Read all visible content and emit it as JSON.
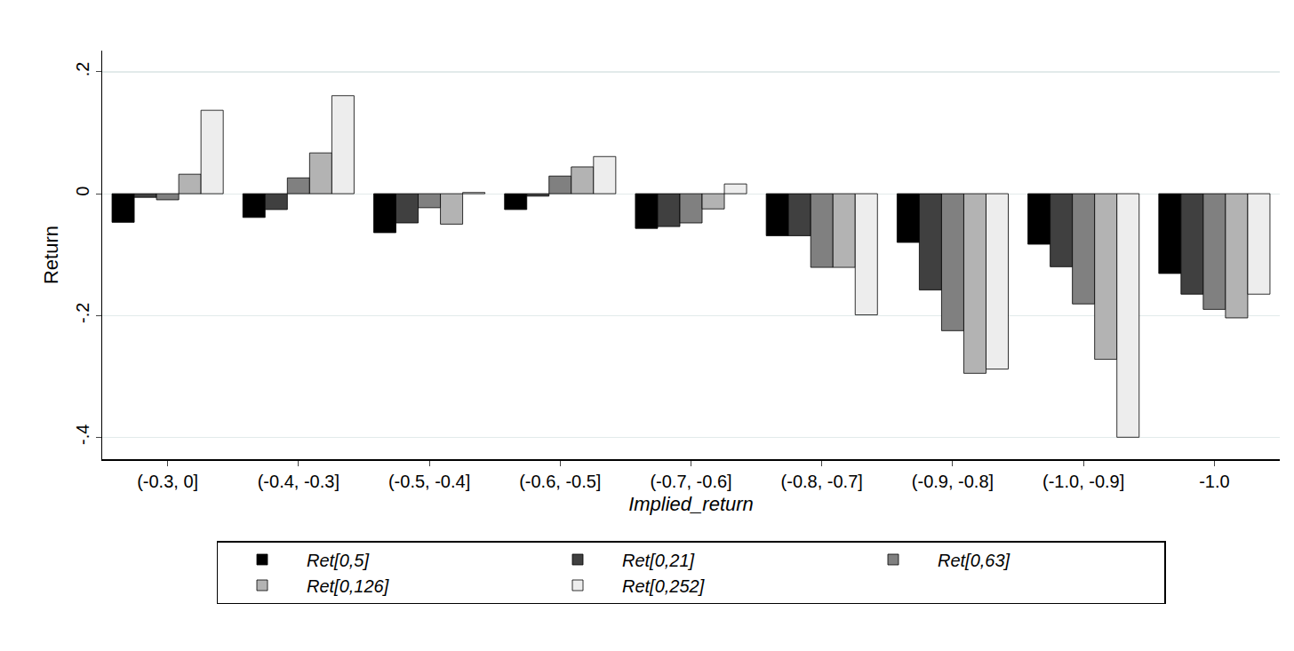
{
  "chart_data": {
    "type": "bar",
    "x_label": "Implied_return",
    "y_label": "Return",
    "categories": [
      "(-0.3, 0]",
      "(-0.4, -0.3]",
      "(-0.5, -0.4]",
      "(-0.6, -0.5]",
      "(-0.7, -0.6]",
      "(-0.8, -0.7]",
      "(-0.9, -0.8]",
      "(-1.0, -0.9]",
      "-1.0"
    ],
    "series": [
      {
        "name": "Ret[0,5]",
        "color": "#000000",
        "values": [
          -0.047,
          -0.039,
          -0.064,
          -0.026,
          -0.057,
          -0.069,
          -0.08,
          -0.083,
          -0.131
        ]
      },
      {
        "name": "Ret[0,21]",
        "color": "#404040",
        "values": [
          -0.006,
          -0.026,
          -0.048,
          -0.004,
          -0.054,
          -0.069,
          -0.158,
          -0.12,
          -0.165
        ]
      },
      {
        "name": "Ret[0,63]",
        "color": "#808080",
        "values": [
          -0.01,
          0.026,
          -0.023,
          0.029,
          -0.048,
          -0.121,
          -0.225,
          -0.181,
          -0.19
        ]
      },
      {
        "name": "Ret[0,126]",
        "color": "#b3b3b3",
        "values": [
          0.032,
          0.067,
          -0.05,
          0.044,
          -0.025,
          -0.121,
          -0.295,
          -0.272,
          -0.204
        ]
      },
      {
        "name": "Ret[0,252]",
        "color": "#ededed",
        "values": [
          0.137,
          0.161,
          0.002,
          0.061,
          0.016,
          -0.199,
          -0.288,
          -0.4,
          -0.165
        ]
      }
    ],
    "ylim": [
      -0.436,
      0.235
    ],
    "yticks": [
      {
        "value": -0.4,
        "label": "-.4"
      },
      {
        "value": -0.2,
        "label": "-.2"
      },
      0,
      {
        "value": 0.2,
        "label": ".2"
      }
    ],
    "grid": true,
    "legend": "bottom"
  }
}
